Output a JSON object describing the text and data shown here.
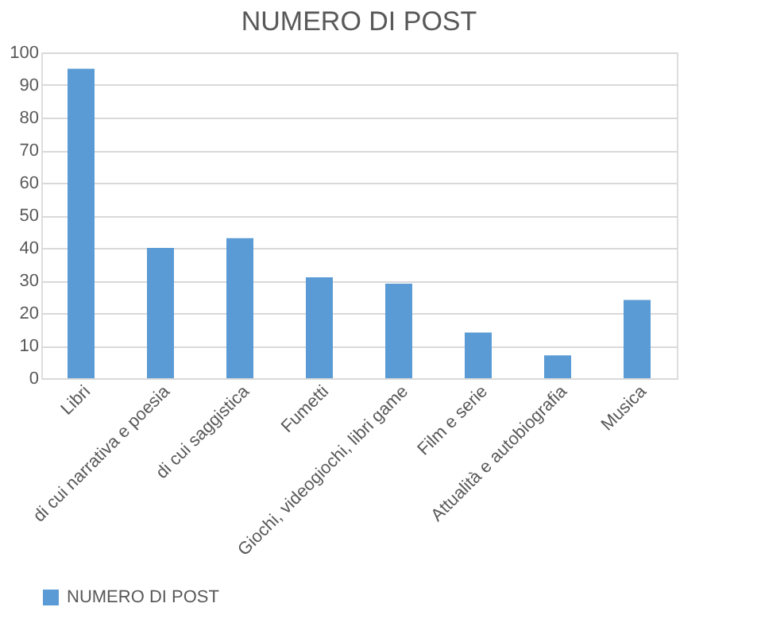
{
  "chart_data": {
    "type": "bar",
    "title": "NUMERO DI POST",
    "categories": [
      "Libri",
      "di cui narrativa e poesia",
      "di cui saggistica",
      "Fumetti",
      "Giochi, videogiochi, libri game",
      "Film e serie",
      "Attualità e autobiografia",
      "Musica"
    ],
    "series": [
      {
        "name": "NUMERO DI POST",
        "color": "#5b9bd5",
        "values": [
          95,
          40,
          43,
          31,
          29,
          14,
          7,
          24
        ]
      }
    ],
    "ylim": [
      0,
      100
    ],
    "yticks": [
      0,
      10,
      20,
      30,
      40,
      50,
      60,
      70,
      80,
      90,
      100
    ],
    "grid": "y",
    "legend": "bottom"
  }
}
